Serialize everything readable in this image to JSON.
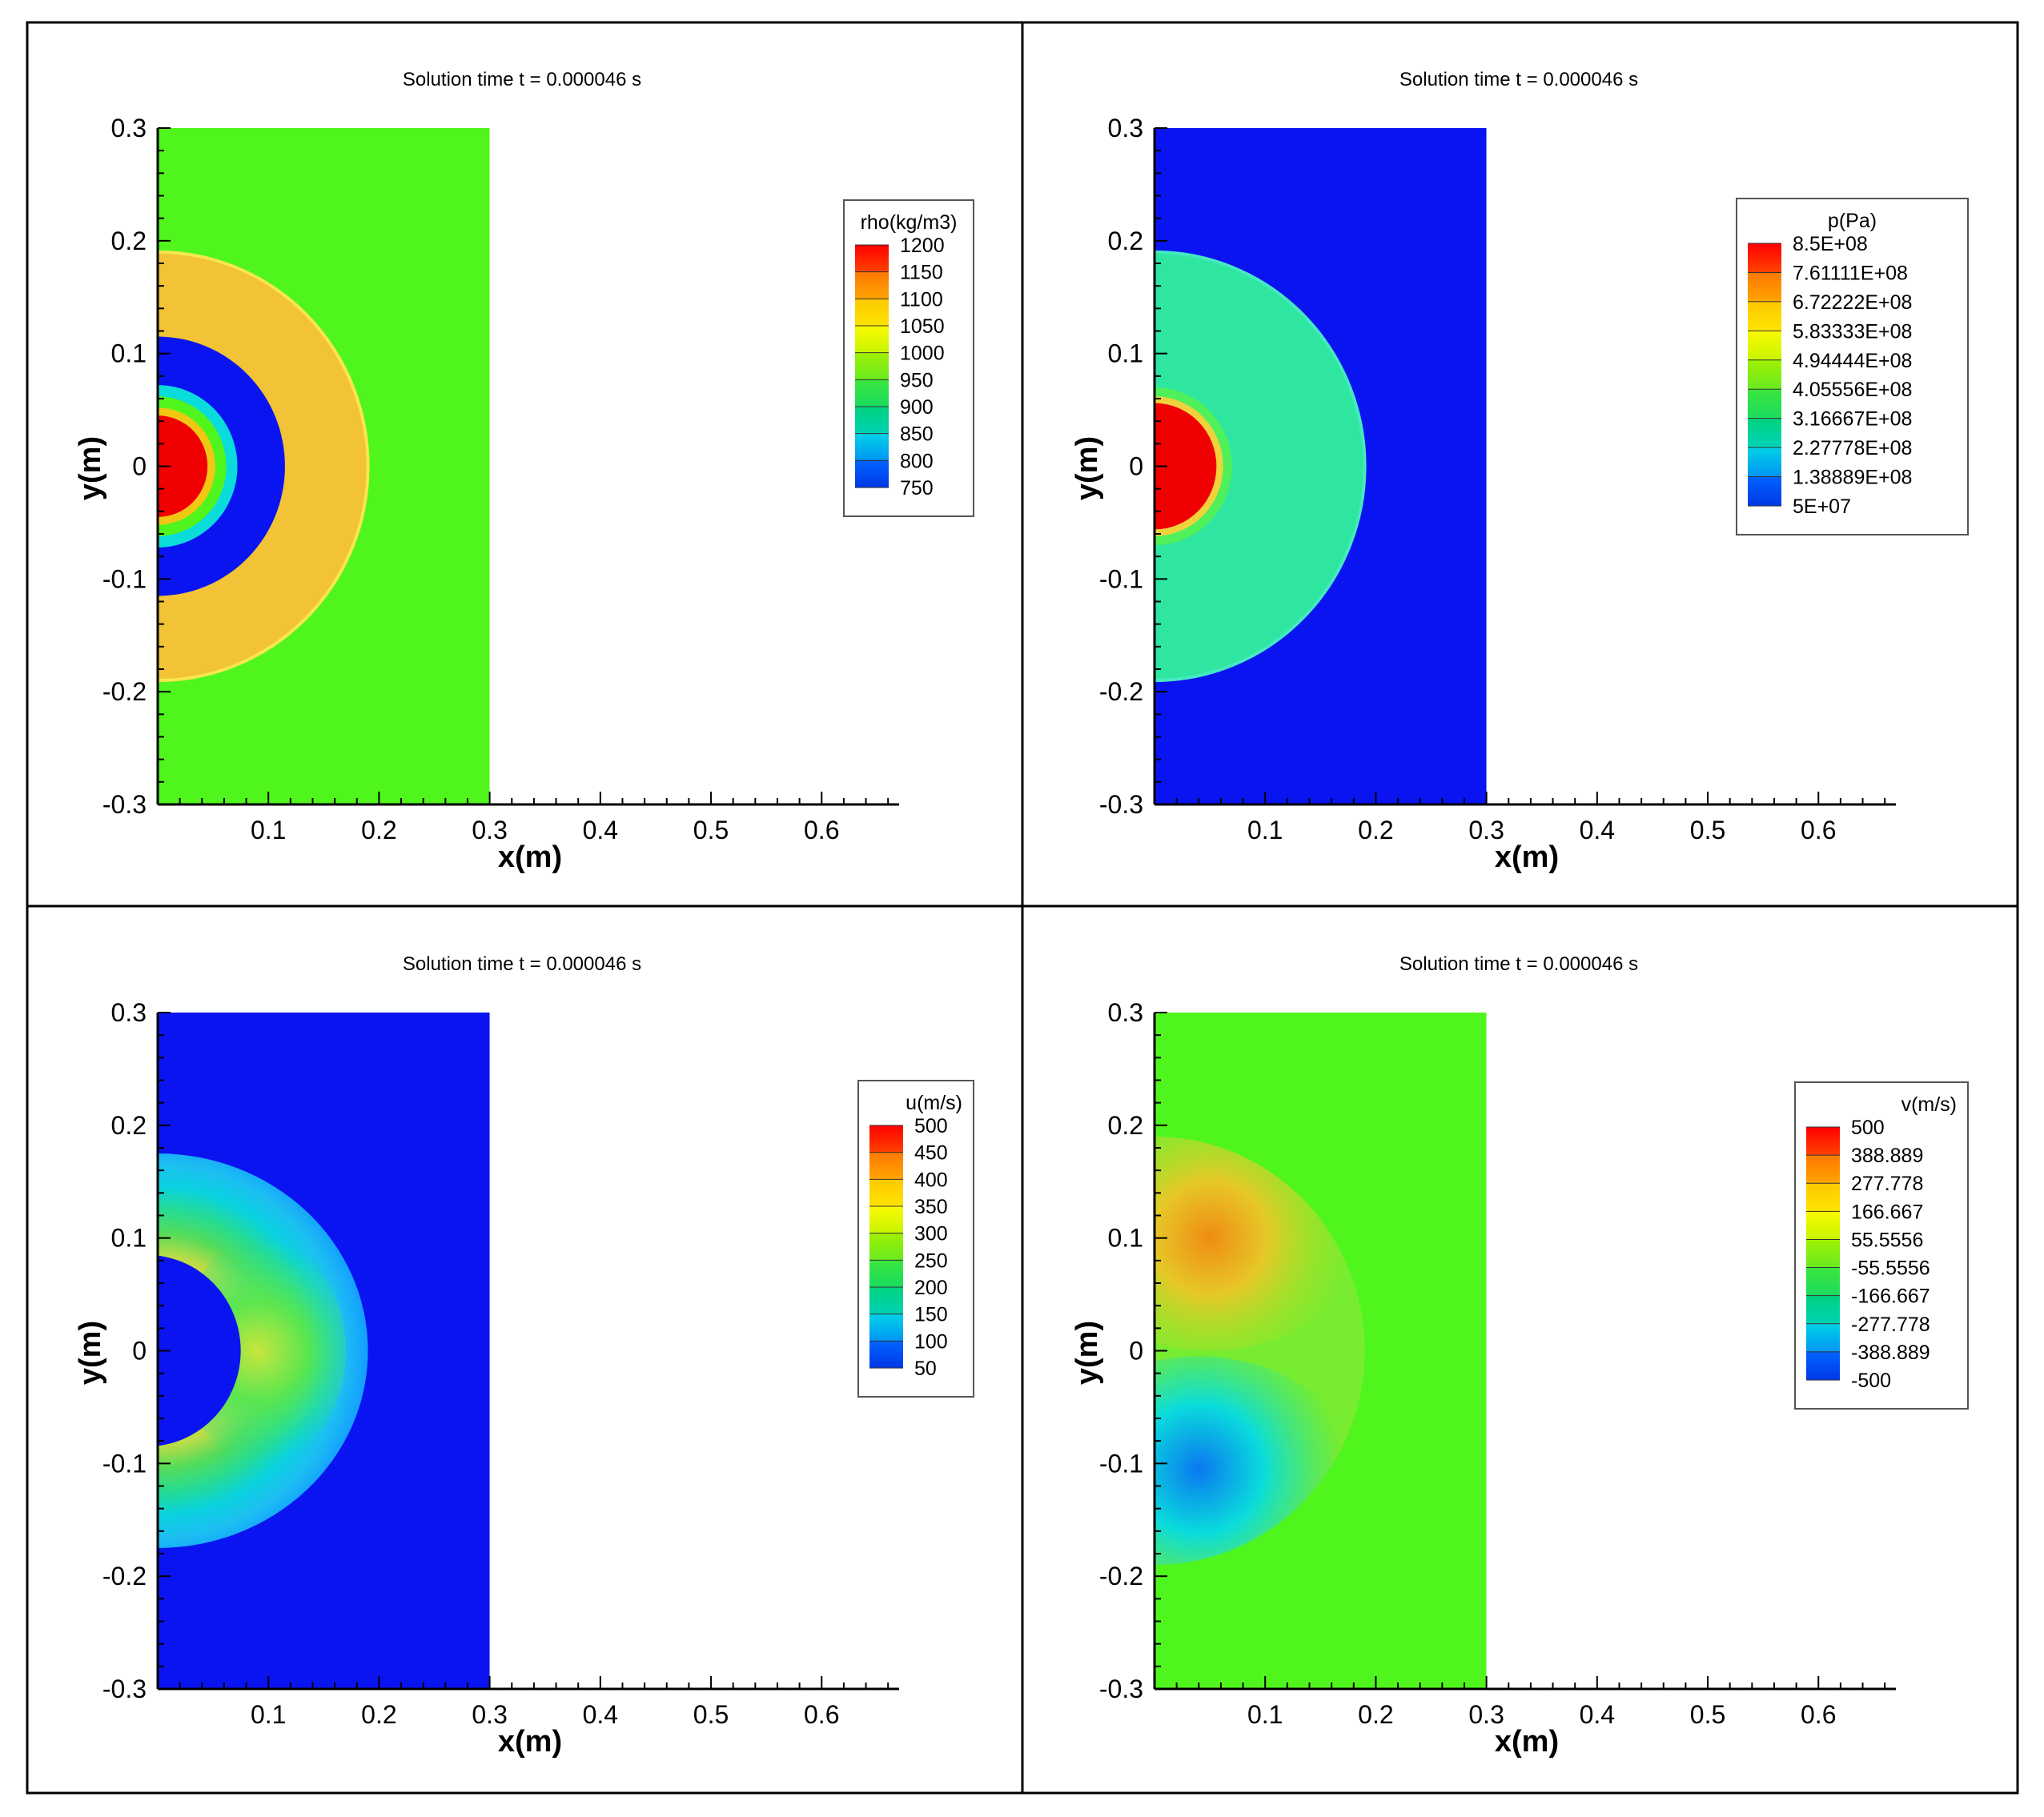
{
  "figure": {
    "title_template": "Solution time t = 0.000046 s"
  },
  "colors": {
    "frame": "#000000",
    "text": "#000000",
    "map_blue": "#0a14f0",
    "map_green": "#50f51e",
    "map_cyan": "#0adcdc",
    "map_yellow": "#f0d23c",
    "map_red": "#f00000",
    "map_orange": "#f08c14"
  },
  "chart_data": [
    {
      "type": "heatmap",
      "name": "density",
      "title": "Solution time t = 0.000046 s",
      "xlabel": "x(m)",
      "ylabel": "y(m)",
      "xlim": [
        0,
        0.67
      ],
      "ylim": [
        -0.3,
        0.3
      ],
      "domain": {
        "x": [
          0,
          0.3
        ],
        "y": [
          -0.3,
          0.3
        ]
      },
      "x_ticks": [
        "0.1",
        "0.2",
        "0.3",
        "0.4",
        "0.5",
        "0.6"
      ],
      "y_ticks": [
        "0.3",
        "0.2",
        "0.1",
        "0",
        "-0.1",
        "-0.2",
        "-0.3"
      ],
      "legend": {
        "title": "rho(kg/m3)",
        "levels": [
          "1200",
          "1150",
          "1100",
          "1050",
          "1000",
          "950",
          "900",
          "850",
          "800",
          "750"
        ],
        "colors": [
          "#ff0000",
          "#ff7800",
          "#ffc800",
          "#fafa00",
          "#a0f000",
          "#3ce63c",
          "#00d27d",
          "#00d2e6",
          "#0064ff",
          "#0014d2"
        ]
      },
      "field": {
        "background": "#50f51e",
        "rings": [
          {
            "r": 0.19,
            "color": "#f2c237",
            "edge": "#f8e650"
          },
          {
            "r": 0.115,
            "color": "#0a14f0",
            "edge": ""
          },
          {
            "r": 0.072,
            "color": "#0adcdc",
            "edge": ""
          },
          {
            "r": 0.062,
            "color": "#50f51e",
            "edge": ""
          },
          {
            "r": 0.052,
            "color": "#f0c814",
            "edge": ""
          },
          {
            "r": 0.045,
            "color": "#f00000",
            "edge": ""
          }
        ]
      }
    },
    {
      "type": "heatmap",
      "name": "pressure",
      "title": "Solution time t = 0.000046 s",
      "xlabel": "x(m)",
      "ylabel": "y(m)",
      "xlim": [
        0,
        0.67
      ],
      "ylim": [
        -0.3,
        0.3
      ],
      "domain": {
        "x": [
          0,
          0.3
        ],
        "y": [
          -0.3,
          0.3
        ]
      },
      "x_ticks": [
        "0.1",
        "0.2",
        "0.3",
        "0.4",
        "0.5",
        "0.6"
      ],
      "y_ticks": [
        "0.3",
        "0.2",
        "0.1",
        "0",
        "-0.1",
        "-0.2",
        "-0.3"
      ],
      "legend": {
        "title": "p(Pa)",
        "levels": [
          "8.5E+08",
          "7.61111E+08",
          "6.72222E+08",
          "5.83333E+08",
          "4.94444E+08",
          "4.05556E+08",
          "3.16667E+08",
          "2.27778E+08",
          "1.38889E+08",
          "5E+07"
        ],
        "colors": [
          "#ff0000",
          "#ff7800",
          "#ffc800",
          "#fafa00",
          "#a0f000",
          "#3ce63c",
          "#00d27d",
          "#00d2e6",
          "#0064ff",
          "#0014d2"
        ]
      },
      "field": {
        "background": "#0a14f0",
        "rings": [
          {
            "r": 0.19,
            "color": "#2ee6a0",
            "edge": "#46e8c0"
          },
          {
            "r": 0.07,
            "color": "#50f05a",
            "edge": ""
          },
          {
            "r": 0.062,
            "color": "#f0d23c",
            "edge": ""
          },
          {
            "r": 0.056,
            "color": "#f00000",
            "edge": ""
          }
        ]
      }
    },
    {
      "type": "heatmap",
      "name": "x-velocity",
      "title": "Solution time t = 0.000046 s",
      "xlabel": "x(m)",
      "ylabel": "y(m)",
      "xlim": [
        0,
        0.67
      ],
      "ylim": [
        -0.3,
        0.3
      ],
      "domain": {
        "x": [
          0,
          0.3
        ],
        "y": [
          -0.3,
          0.3
        ]
      },
      "x_ticks": [
        "0.1",
        "0.2",
        "0.3",
        "0.4",
        "0.5",
        "0.6"
      ],
      "y_ticks": [
        "0.3",
        "0.2",
        "0.1",
        "0",
        "-0.1",
        "-0.2",
        "-0.3"
      ],
      "legend": {
        "title": "u(m/s)",
        "levels": [
          "500",
          "450",
          "400",
          "350",
          "300",
          "250",
          "200",
          "150",
          "100",
          "50"
        ],
        "colors": [
          "#ff0000",
          "#ff7800",
          "#ffc800",
          "#fafa00",
          "#a0f000",
          "#3ce63c",
          "#00d27d",
          "#00d2e6",
          "#0064ff",
          "#0014d2"
        ]
      },
      "field": {
        "background": "#0a14f0",
        "crescent": {
          "outer_r": 0.19,
          "inner_cx": -0.01,
          "inner_r": 0.085,
          "colors": [
            "#14a5ff",
            "#1ec8f0",
            "#0adcdc",
            "#28e68c",
            "#5ae650",
            "#c8e63c"
          ]
        }
      }
    },
    {
      "type": "heatmap",
      "name": "y-velocity",
      "title": "Solution time t = 0.000046 s",
      "xlabel": "x(m)",
      "ylabel": "y(m)",
      "xlim": [
        0,
        0.67
      ],
      "ylim": [
        -0.3,
        0.3
      ],
      "domain": {
        "x": [
          0,
          0.3
        ],
        "y": [
          -0.3,
          0.3
        ]
      },
      "x_ticks": [
        "0.1",
        "0.2",
        "0.3",
        "0.4",
        "0.5",
        "0.6"
      ],
      "y_ticks": [
        "0.3",
        "0.2",
        "0.1",
        "0",
        "-0.1",
        "-0.2",
        "-0.3"
      ],
      "legend": {
        "title": "v(m/s)",
        "levels": [
          "500",
          "388.889",
          "277.778",
          "166.667",
          "55.5556",
          "-55.5556",
          "-166.667",
          "-277.778",
          "-388.889",
          "-500"
        ],
        "colors": [
          "#ff0000",
          "#ff7800",
          "#ffc800",
          "#fafa00",
          "#a0f000",
          "#3ce63c",
          "#00d27d",
          "#00d2e6",
          "#0064ff",
          "#0014d2"
        ]
      },
      "field": {
        "background": "#50f51e",
        "disk_r": 0.19,
        "upper_colors": [
          "#a0e628",
          "#e6c828",
          "#f08c14"
        ],
        "lower_colors": [
          "#28e6a0",
          "#0adcdc",
          "#0a78f0"
        ]
      }
    }
  ]
}
